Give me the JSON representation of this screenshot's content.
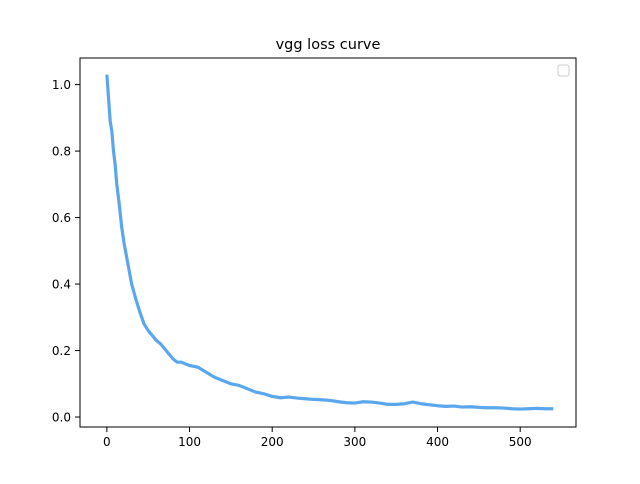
{
  "chart_data": {
    "type": "line",
    "title": "vgg loss curve",
    "xlabel": "",
    "ylabel": "",
    "xlim": [
      -32.5,
      567.5
    ],
    "ylim": [
      -0.03,
      1.08
    ],
    "xticks": [
      0,
      100,
      200,
      300,
      400,
      500
    ],
    "xtick_labels": [
      "0",
      "100",
      "200",
      "300",
      "400",
      "500"
    ],
    "yticks": [
      0.0,
      0.2,
      0.4,
      0.6,
      0.8,
      1.0
    ],
    "ytick_labels": [
      "0.0",
      "0.2",
      "0.4",
      "0.6",
      "0.8",
      "1.0"
    ],
    "grid": false,
    "legend": {
      "position": "top-right",
      "entries": []
    },
    "colors": {
      "series": "#5aa7ee",
      "axes": "#000000",
      "background": "#ffffff"
    },
    "series": [
      {
        "x": [
          0,
          2,
          4,
          6,
          8,
          10,
          12,
          15,
          18,
          21,
          24,
          27,
          30,
          35,
          40,
          45,
          50,
          55,
          60,
          65,
          70,
          75,
          80,
          85,
          90,
          95,
          100,
          110,
          120,
          130,
          140,
          150,
          160,
          170,
          180,
          190,
          200,
          210,
          220,
          230,
          240,
          250,
          260,
          270,
          280,
          290,
          300,
          310,
          320,
          330,
          340,
          350,
          360,
          370,
          380,
          390,
          400,
          410,
          420,
          430,
          440,
          450,
          460,
          470,
          480,
          490,
          500,
          510,
          520,
          530,
          540
        ],
        "y": [
          1.03,
          0.96,
          0.89,
          0.86,
          0.8,
          0.76,
          0.7,
          0.64,
          0.57,
          0.52,
          0.48,
          0.44,
          0.4,
          0.355,
          0.315,
          0.28,
          0.26,
          0.245,
          0.23,
          0.22,
          0.205,
          0.19,
          0.175,
          0.165,
          0.165,
          0.16,
          0.155,
          0.15,
          0.135,
          0.12,
          0.11,
          0.1,
          0.095,
          0.085,
          0.075,
          0.07,
          0.062,
          0.058,
          0.06,
          0.057,
          0.055,
          0.053,
          0.052,
          0.05,
          0.046,
          0.043,
          0.042,
          0.046,
          0.045,
          0.042,
          0.038,
          0.038,
          0.04,
          0.045,
          0.04,
          0.037,
          0.034,
          0.032,
          0.033,
          0.03,
          0.031,
          0.029,
          0.028,
          0.028,
          0.027,
          0.025,
          0.024,
          0.025,
          0.026,
          0.025,
          0.025
        ]
      }
    ]
  }
}
